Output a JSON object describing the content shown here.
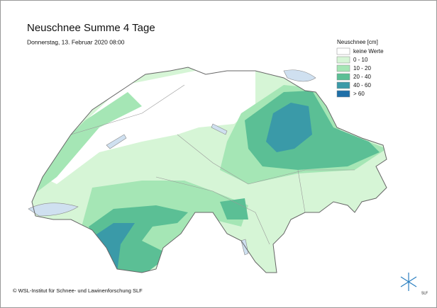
{
  "header": {
    "title": "Neuschnee Summe 4 Tage",
    "subtitle": "Donnerstag, 13. Februar 2020 08:00"
  },
  "legend": {
    "title": "Neuschnee [cm]",
    "items": [
      {
        "label": "keine Werte",
        "color": "#ffffff"
      },
      {
        "label": "0 - 10",
        "color": "#d6f5d6"
      },
      {
        "label": "10 - 20",
        "color": "#a5e6b5"
      },
      {
        "label": "20 - 40",
        "color": "#5bbf95"
      },
      {
        "label": "40 - 60",
        "color": "#3a9aa8"
      },
      {
        "label": "> 60",
        "color": "#1f6fa8"
      }
    ]
  },
  "footer": {
    "copyright": "© WSL-Institut für Schnee- und Lawinenforschung SLF",
    "logo": "SLF"
  }
}
